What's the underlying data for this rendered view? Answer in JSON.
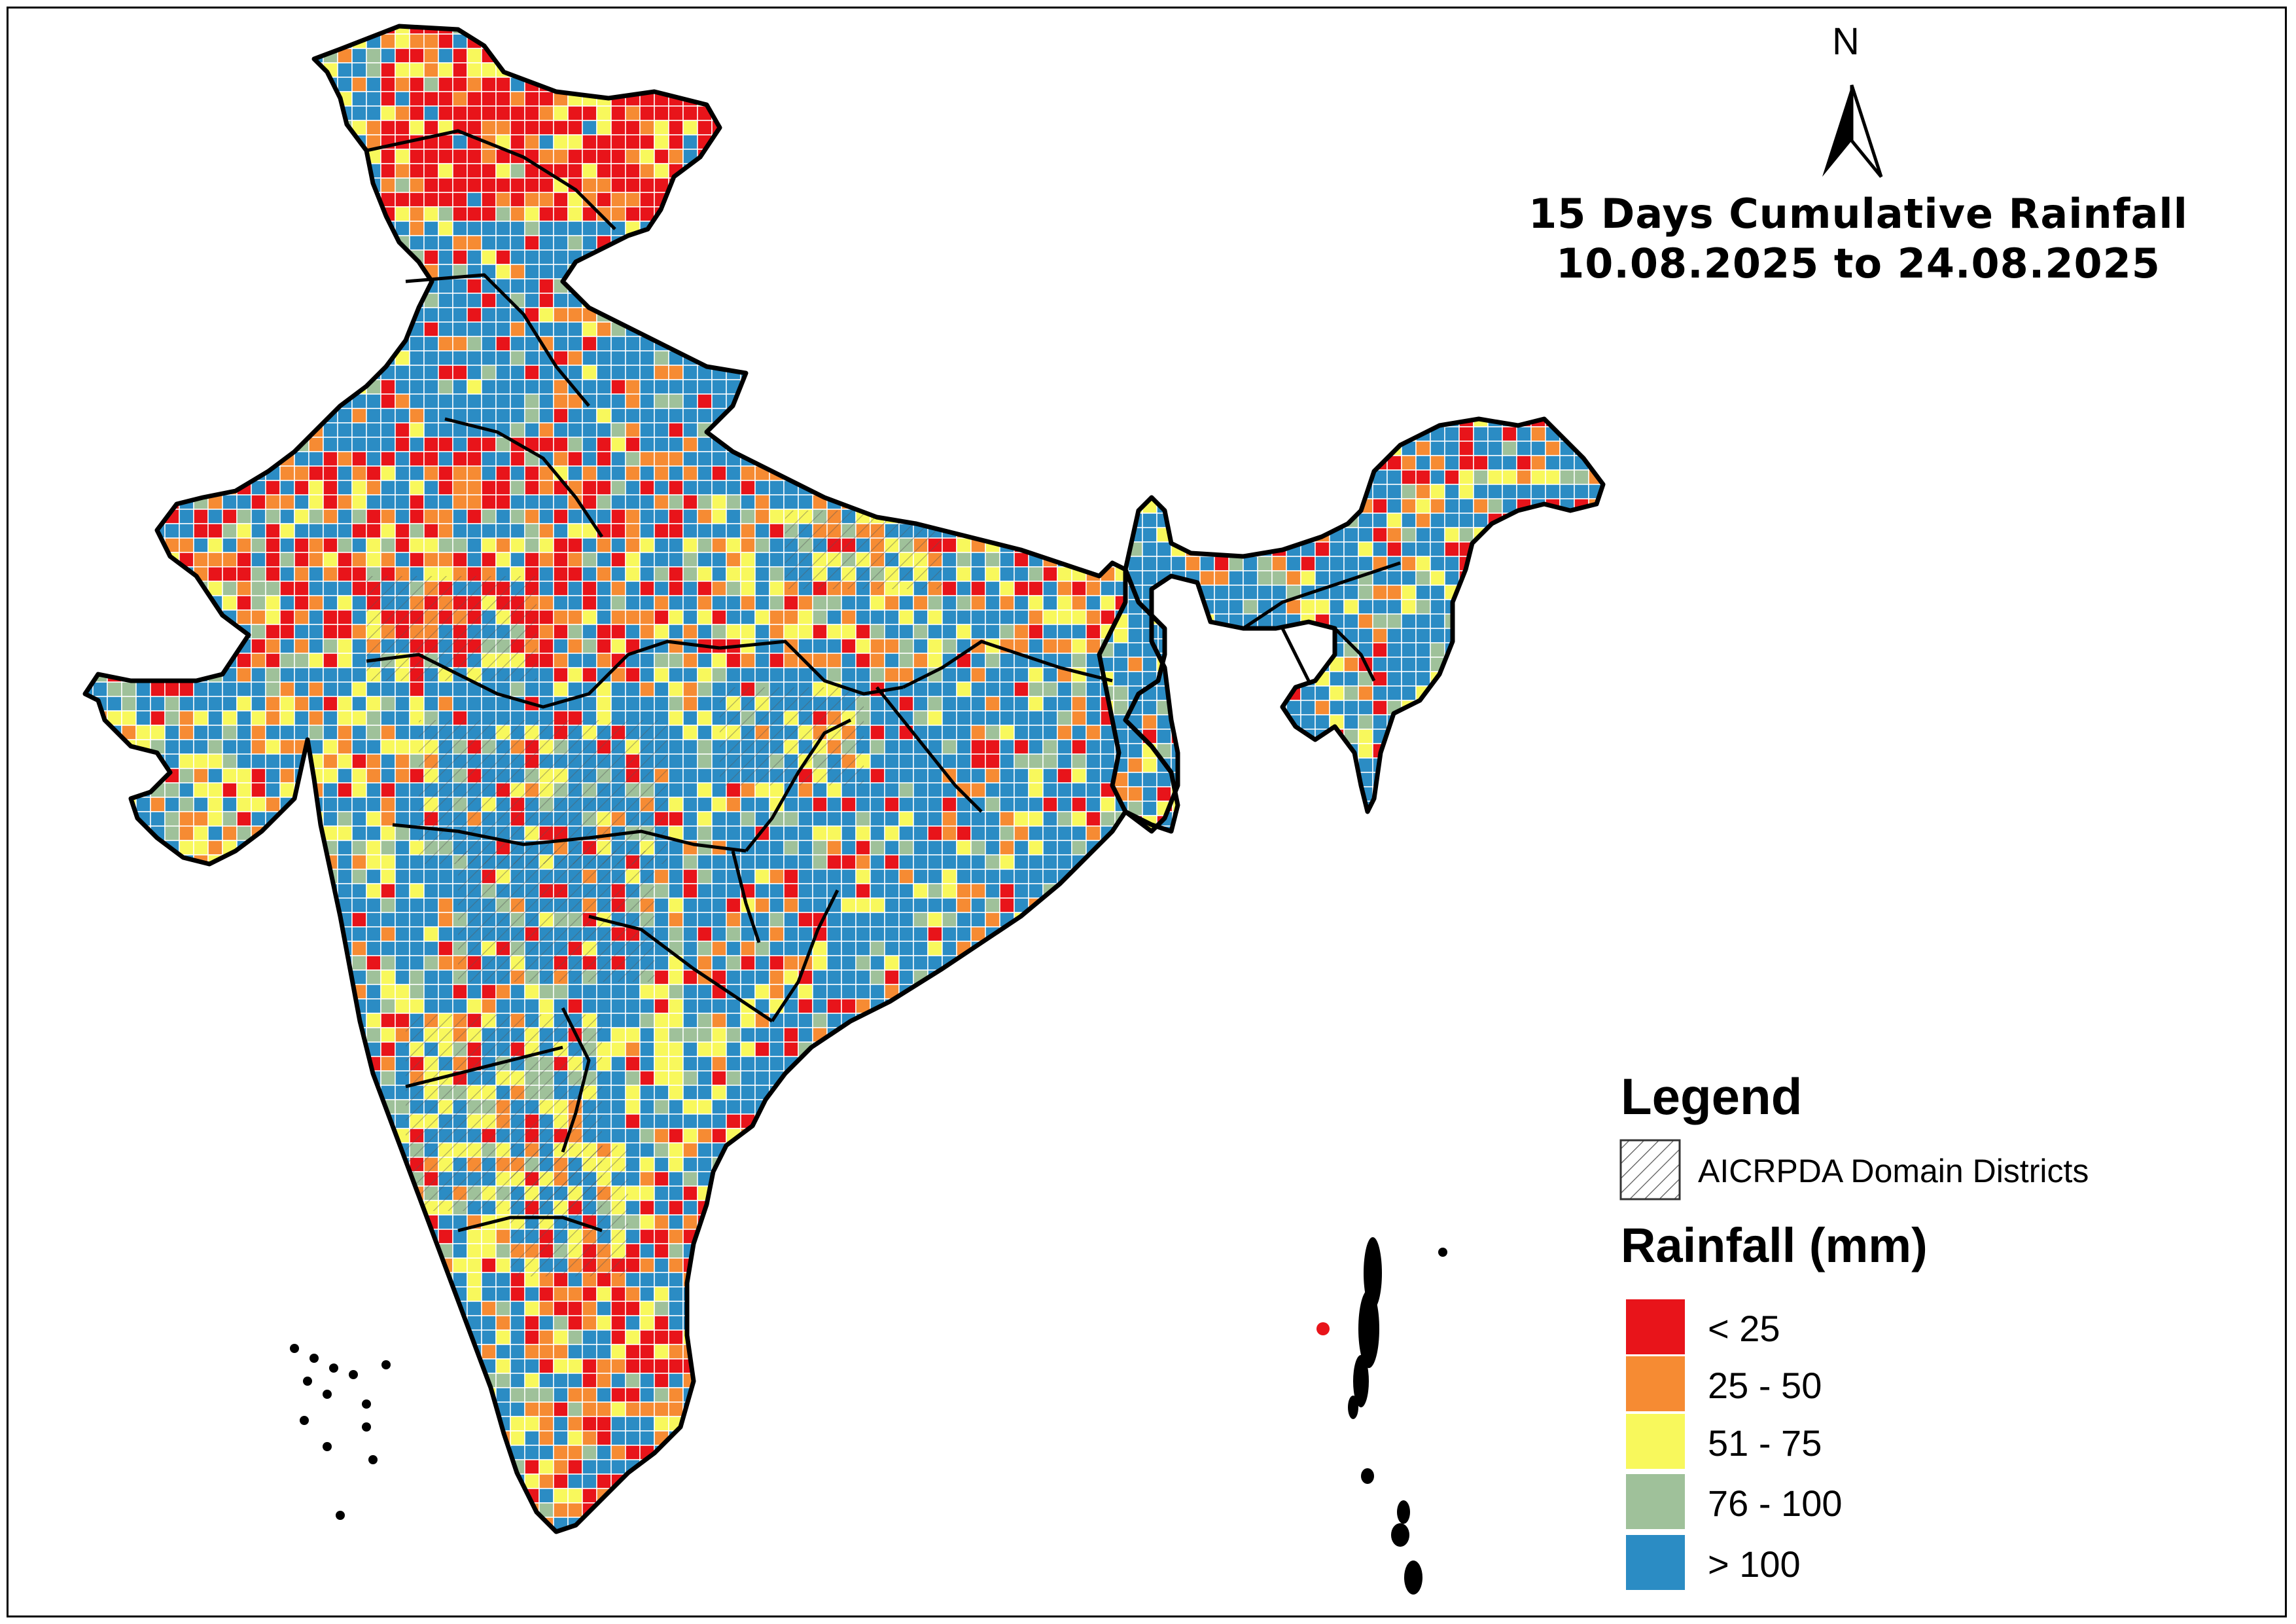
{
  "map": {
    "title_line1": "15 Days  Cumulative Rainfall",
    "title_line2": "10.08.2025 to 24.08.2025",
    "north_label": "N"
  },
  "legend": {
    "title": "Legend",
    "hatch_label": "AICRPDA Domain Districts",
    "rainfall_title": "Rainfall (mm)",
    "classes": [
      {
        "label": "< 25",
        "color": "#e8141a"
      },
      {
        "label": "25 - 50",
        "color": "#f68b33"
      },
      {
        "label": "51 - 75",
        "color": "#f8f85c"
      },
      {
        "label": "76 - 100",
        "color": "#9fc19a"
      },
      {
        "label": "> 100",
        "color": "#2b8cc4"
      }
    ]
  },
  "colors": {
    "border": "#000000",
    "grid_line": "#ffffff",
    "state_line": "#000000"
  }
}
